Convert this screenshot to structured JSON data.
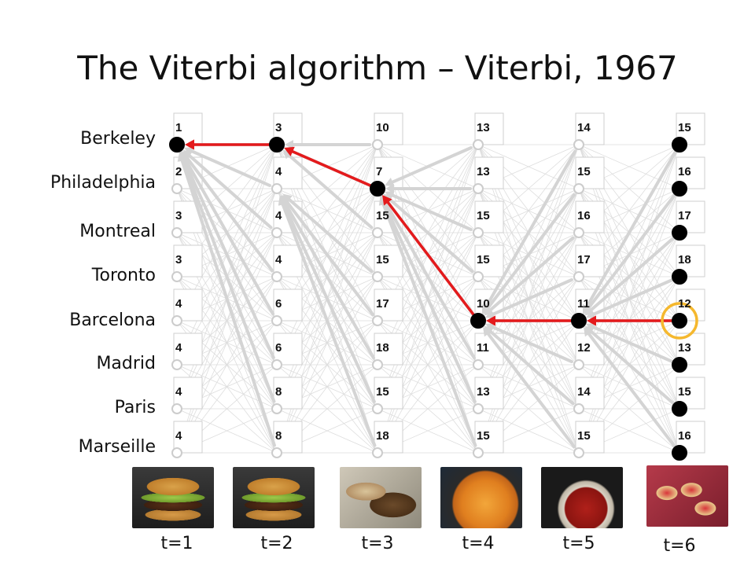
{
  "title": "The Viterbi algorithm – Viterbi, 1967",
  "states": [
    "Berkeley",
    "Philadelphia",
    "Montreal",
    "Toronto",
    "Barcelona",
    "Madrid",
    "Paris",
    "Marseille"
  ],
  "time_labels": [
    "t=1",
    "t=2",
    "t=3",
    "t=4",
    "t=5",
    "t=6"
  ],
  "scores": [
    [
      1,
      3,
      10,
      13,
      14,
      15
    ],
    [
      2,
      4,
      7,
      13,
      15,
      16
    ],
    [
      3,
      4,
      15,
      15,
      16,
      17
    ],
    [
      3,
      4,
      15,
      15,
      17,
      18
    ],
    [
      4,
      6,
      17,
      10,
      11,
      12
    ],
    [
      4,
      6,
      18,
      11,
      12,
      13
    ],
    [
      4,
      8,
      15,
      13,
      14,
      15
    ],
    [
      4,
      8,
      18,
      15,
      15,
      16
    ]
  ],
  "back_pointers": [
    [
      null,
      0,
      0,
      1,
      4,
      4
    ],
    [
      null,
      0,
      0,
      1,
      4,
      4
    ],
    [
      null,
      0,
      0,
      1,
      4,
      4
    ],
    [
      null,
      0,
      1,
      1,
      4,
      4
    ],
    [
      null,
      0,
      1,
      1,
      4,
      4
    ],
    [
      null,
      0,
      1,
      1,
      4,
      4
    ],
    [
      null,
      0,
      1,
      1,
      4,
      4
    ],
    [
      null,
      0,
      1,
      1,
      4,
      4
    ]
  ],
  "best_path": [
    0,
    0,
    1,
    4,
    4,
    4
  ],
  "highlighted_end_state": 4,
  "foods": [
    "burger-photo",
    "burger-photo",
    "cheesesteak-photo",
    "paella-photo",
    "soup-photo",
    "pizza-squares-photo"
  ],
  "colors": {
    "best_path": "#e41a1c",
    "back_pointer": "#d4d4d4",
    "grid": "#dddddd",
    "highlight": "#f5b82e",
    "node_filled": "#000000"
  }
}
